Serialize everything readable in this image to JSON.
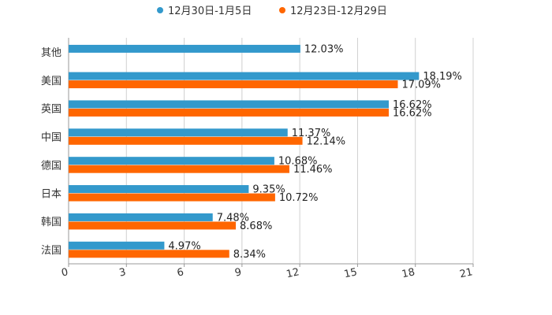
{
  "chart_data": {
    "type": "bar",
    "orientation": "horizontal",
    "categories": [
      "其他",
      "美国",
      "英国",
      "中国",
      "德国",
      "日本",
      "韩国",
      "法国"
    ],
    "series": [
      {
        "name": "12月30日-1月5日",
        "color": "#3399cc",
        "values": [
          12.03,
          18.19,
          16.62,
          11.37,
          10.68,
          9.35,
          7.48,
          4.97
        ],
        "labels": [
          "12.03%",
          "18.19%",
          "16.62%",
          "11.37%",
          "10.68%",
          "9.35%",
          "7.48%",
          "4.97%"
        ]
      },
      {
        "name": "12月23日-12月29日",
        "color": "#ff6600",
        "values": [
          null,
          17.09,
          16.62,
          12.14,
          11.46,
          10.72,
          8.68,
          8.34
        ],
        "labels": [
          null,
          "17.09%",
          "16.62%",
          "12.14%",
          "11.46%",
          "10.72%",
          "8.68%",
          "8.34%"
        ]
      }
    ],
    "x_ticks": [
      "0",
      "3",
      "6",
      "9",
      "12",
      "15",
      "18",
      "21"
    ],
    "xlim": [
      0,
      21
    ],
    "grid": true,
    "legend_position": "top-center",
    "title": "",
    "xlabel": "",
    "ylabel": ""
  }
}
